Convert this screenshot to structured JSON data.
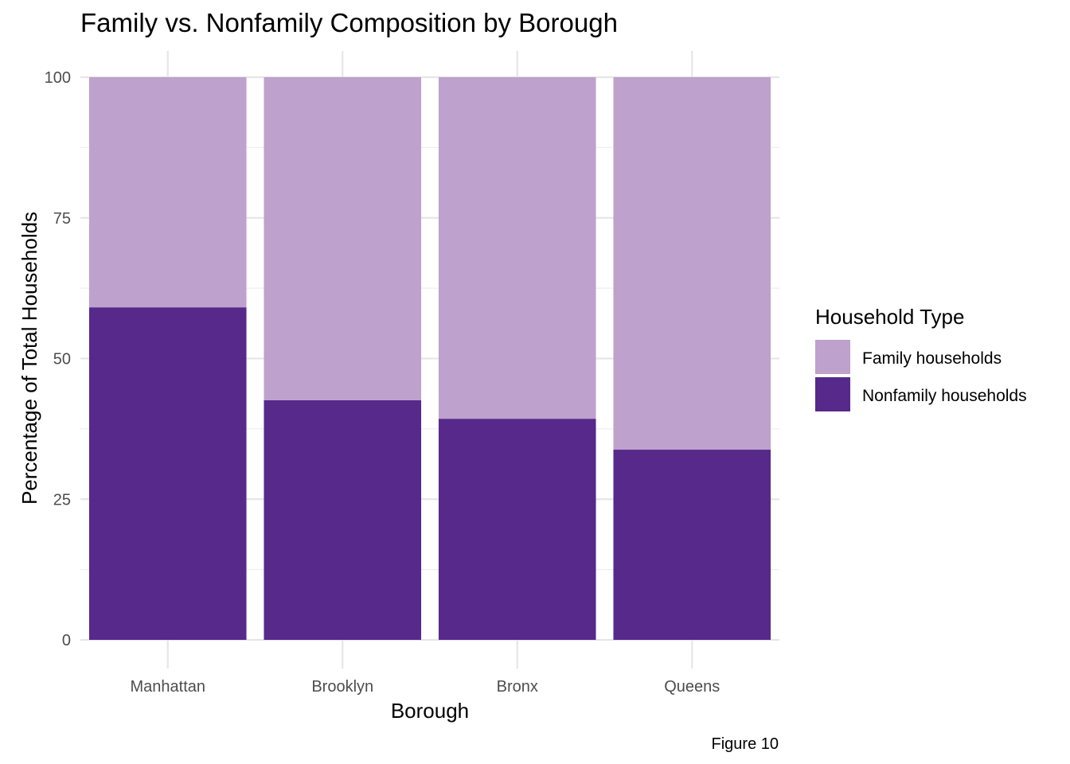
{
  "chart_data": {
    "type": "bar",
    "stacked": true,
    "title": "Family vs. Nonfamily Composition by Borough",
    "xlabel": "Borough",
    "ylabel": "Percentage of Total Households",
    "caption": "Figure 10",
    "categories": [
      "Manhattan",
      "Brooklyn",
      "Bronx",
      "Queens"
    ],
    "ylim": [
      0,
      100
    ],
    "yticks": [
      0,
      25,
      50,
      75,
      100
    ],
    "grid": true,
    "legend": {
      "title": "Household Type",
      "position": "right"
    },
    "series": [
      {
        "name": "Nonfamily households",
        "color": "#56298A",
        "values": [
          59.1,
          42.6,
          39.3,
          33.8
        ]
      },
      {
        "name": "Family households",
        "color": "#BEA1CC",
        "values": [
          40.9,
          57.4,
          60.7,
          66.2
        ]
      }
    ]
  }
}
